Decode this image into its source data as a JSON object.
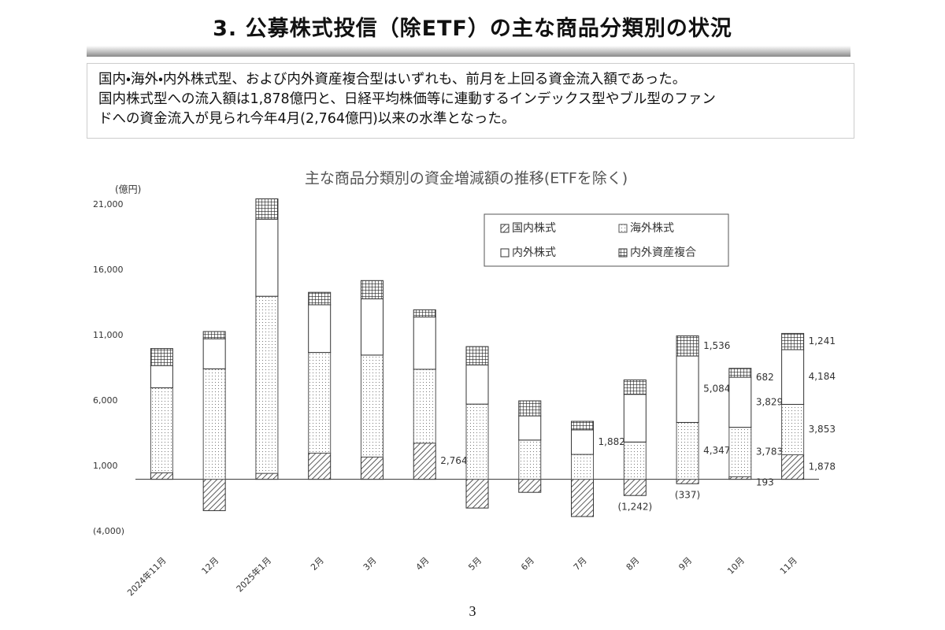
{
  "header": {
    "title": "3. 公募株式投信（除ETF）の主な商品分類別の状況"
  },
  "summary": [
    "国内・海外・内外株式型、および内外資産複合型はいずれも、前月を上回る資金流入額であった。",
    "国内株式型への流入額は1,878億円と、日経平均株価等に連動するインデックス型やブル型のファン",
    "ドへの資金流入が見られ今年4月(2,764億円)以来の水準となった。"
  ],
  "chart_data": {
    "type": "stacked-bar",
    "title": "主な商品分類別の資金増減額の推移(ETFを除く)",
    "y_unit": "(億円)",
    "categories": [
      "2024年11月",
      "12月",
      "2025年1月",
      "2月",
      "3月",
      "4月",
      "5月",
      "6月",
      "7月",
      "8月",
      "9月",
      "10月",
      "11月"
    ],
    "series": [
      {
        "name": "国内株式",
        "pattern": "hatch",
        "color": "#333333",
        "values": [
          500,
          -2400,
          450,
          2000,
          1700,
          2764,
          -2200,
          -1000,
          -2850,
          -1242,
          -337,
          193,
          1878
        ],
        "value_labels": [
          null,
          null,
          null,
          null,
          null,
          "2,764",
          null,
          null,
          null,
          "(1,242)",
          "(337)",
          "193",
          "1,878"
        ]
      },
      {
        "name": "海外株式",
        "pattern": "dots",
        "color": "#555555",
        "values": [
          6500,
          8450,
          13550,
          7700,
          7800,
          5650,
          5750,
          3000,
          1900,
          2850,
          4347,
          3783,
          3853
        ],
        "value_labels": [
          null,
          null,
          null,
          null,
          null,
          null,
          null,
          null,
          null,
          null,
          "4,347",
          "3,783",
          "3,853"
        ]
      },
      {
        "name": "内外株式",
        "pattern": "none",
        "color": "#333333",
        "values": [
          1700,
          2300,
          5900,
          3650,
          4300,
          4000,
          3000,
          1850,
          1882,
          3650,
          5084,
          3829,
          4184
        ],
        "value_labels": [
          null,
          null,
          null,
          null,
          null,
          null,
          null,
          null,
          "1,882",
          null,
          "5,084",
          "3,829",
          "4,184"
        ]
      },
      {
        "name": "内外資産複合",
        "pattern": "grid",
        "color": "#333333",
        "values": [
          1300,
          550,
          1550,
          950,
          1400,
          550,
          1400,
          1150,
          650,
          1100,
          1536,
          682,
          1241
        ],
        "value_labels": [
          null,
          null,
          null,
          null,
          null,
          null,
          null,
          null,
          null,
          null,
          "1,536",
          "682",
          "1,241"
        ]
      }
    ],
    "ylim": [
      -4000,
      21000
    ],
    "yticks": [
      {
        "value": -4000,
        "label": "(4,000)"
      },
      {
        "value": 1000,
        "label": "1,000"
      },
      {
        "value": 6000,
        "label": "6,000"
      },
      {
        "value": 11000,
        "label": "11,000"
      },
      {
        "value": 16000,
        "label": "16,000"
      },
      {
        "value": 21000,
        "label": "21,000"
      }
    ],
    "grid": false
  },
  "page_number": "3"
}
